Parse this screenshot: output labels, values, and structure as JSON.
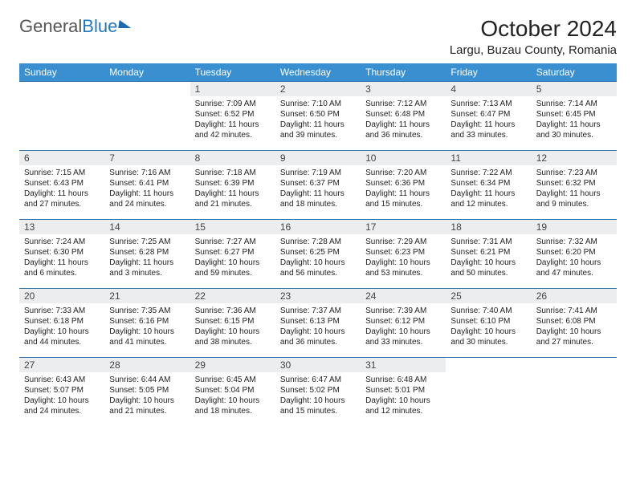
{
  "logo": {
    "text1": "General",
    "text2": "Blue"
  },
  "title": "October 2024",
  "location": "Largu, Buzau County, Romania",
  "colors": {
    "header_bg": "#3a8fd0",
    "header_text": "#ffffff",
    "row_divider": "#2d6fa8",
    "daynum_bg": "#ecedee",
    "logo_blue": "#2277c3"
  },
  "weekdays": [
    "Sunday",
    "Monday",
    "Tuesday",
    "Wednesday",
    "Thursday",
    "Friday",
    "Saturday"
  ],
  "weeks": [
    [
      {
        "empty": true
      },
      {
        "empty": true
      },
      {
        "n": "1",
        "sr": "Sunrise: 7:09 AM",
        "ss": "Sunset: 6:52 PM",
        "dl": "Daylight: 11 hours and 42 minutes."
      },
      {
        "n": "2",
        "sr": "Sunrise: 7:10 AM",
        "ss": "Sunset: 6:50 PM",
        "dl": "Daylight: 11 hours and 39 minutes."
      },
      {
        "n": "3",
        "sr": "Sunrise: 7:12 AM",
        "ss": "Sunset: 6:48 PM",
        "dl": "Daylight: 11 hours and 36 minutes."
      },
      {
        "n": "4",
        "sr": "Sunrise: 7:13 AM",
        "ss": "Sunset: 6:47 PM",
        "dl": "Daylight: 11 hours and 33 minutes."
      },
      {
        "n": "5",
        "sr": "Sunrise: 7:14 AM",
        "ss": "Sunset: 6:45 PM",
        "dl": "Daylight: 11 hours and 30 minutes."
      }
    ],
    [
      {
        "n": "6",
        "sr": "Sunrise: 7:15 AM",
        "ss": "Sunset: 6:43 PM",
        "dl": "Daylight: 11 hours and 27 minutes."
      },
      {
        "n": "7",
        "sr": "Sunrise: 7:16 AM",
        "ss": "Sunset: 6:41 PM",
        "dl": "Daylight: 11 hours and 24 minutes."
      },
      {
        "n": "8",
        "sr": "Sunrise: 7:18 AM",
        "ss": "Sunset: 6:39 PM",
        "dl": "Daylight: 11 hours and 21 minutes."
      },
      {
        "n": "9",
        "sr": "Sunrise: 7:19 AM",
        "ss": "Sunset: 6:37 PM",
        "dl": "Daylight: 11 hours and 18 minutes."
      },
      {
        "n": "10",
        "sr": "Sunrise: 7:20 AM",
        "ss": "Sunset: 6:36 PM",
        "dl": "Daylight: 11 hours and 15 minutes."
      },
      {
        "n": "11",
        "sr": "Sunrise: 7:22 AM",
        "ss": "Sunset: 6:34 PM",
        "dl": "Daylight: 11 hours and 12 minutes."
      },
      {
        "n": "12",
        "sr": "Sunrise: 7:23 AM",
        "ss": "Sunset: 6:32 PM",
        "dl": "Daylight: 11 hours and 9 minutes."
      }
    ],
    [
      {
        "n": "13",
        "sr": "Sunrise: 7:24 AM",
        "ss": "Sunset: 6:30 PM",
        "dl": "Daylight: 11 hours and 6 minutes."
      },
      {
        "n": "14",
        "sr": "Sunrise: 7:25 AM",
        "ss": "Sunset: 6:28 PM",
        "dl": "Daylight: 11 hours and 3 minutes."
      },
      {
        "n": "15",
        "sr": "Sunrise: 7:27 AM",
        "ss": "Sunset: 6:27 PM",
        "dl": "Daylight: 10 hours and 59 minutes."
      },
      {
        "n": "16",
        "sr": "Sunrise: 7:28 AM",
        "ss": "Sunset: 6:25 PM",
        "dl": "Daylight: 10 hours and 56 minutes."
      },
      {
        "n": "17",
        "sr": "Sunrise: 7:29 AM",
        "ss": "Sunset: 6:23 PM",
        "dl": "Daylight: 10 hours and 53 minutes."
      },
      {
        "n": "18",
        "sr": "Sunrise: 7:31 AM",
        "ss": "Sunset: 6:21 PM",
        "dl": "Daylight: 10 hours and 50 minutes."
      },
      {
        "n": "19",
        "sr": "Sunrise: 7:32 AM",
        "ss": "Sunset: 6:20 PM",
        "dl": "Daylight: 10 hours and 47 minutes."
      }
    ],
    [
      {
        "n": "20",
        "sr": "Sunrise: 7:33 AM",
        "ss": "Sunset: 6:18 PM",
        "dl": "Daylight: 10 hours and 44 minutes."
      },
      {
        "n": "21",
        "sr": "Sunrise: 7:35 AM",
        "ss": "Sunset: 6:16 PM",
        "dl": "Daylight: 10 hours and 41 minutes."
      },
      {
        "n": "22",
        "sr": "Sunrise: 7:36 AM",
        "ss": "Sunset: 6:15 PM",
        "dl": "Daylight: 10 hours and 38 minutes."
      },
      {
        "n": "23",
        "sr": "Sunrise: 7:37 AM",
        "ss": "Sunset: 6:13 PM",
        "dl": "Daylight: 10 hours and 36 minutes."
      },
      {
        "n": "24",
        "sr": "Sunrise: 7:39 AM",
        "ss": "Sunset: 6:12 PM",
        "dl": "Daylight: 10 hours and 33 minutes."
      },
      {
        "n": "25",
        "sr": "Sunrise: 7:40 AM",
        "ss": "Sunset: 6:10 PM",
        "dl": "Daylight: 10 hours and 30 minutes."
      },
      {
        "n": "26",
        "sr": "Sunrise: 7:41 AM",
        "ss": "Sunset: 6:08 PM",
        "dl": "Daylight: 10 hours and 27 minutes."
      }
    ],
    [
      {
        "n": "27",
        "sr": "Sunrise: 6:43 AM",
        "ss": "Sunset: 5:07 PM",
        "dl": "Daylight: 10 hours and 24 minutes."
      },
      {
        "n": "28",
        "sr": "Sunrise: 6:44 AM",
        "ss": "Sunset: 5:05 PM",
        "dl": "Daylight: 10 hours and 21 minutes."
      },
      {
        "n": "29",
        "sr": "Sunrise: 6:45 AM",
        "ss": "Sunset: 5:04 PM",
        "dl": "Daylight: 10 hours and 18 minutes."
      },
      {
        "n": "30",
        "sr": "Sunrise: 6:47 AM",
        "ss": "Sunset: 5:02 PM",
        "dl": "Daylight: 10 hours and 15 minutes."
      },
      {
        "n": "31",
        "sr": "Sunrise: 6:48 AM",
        "ss": "Sunset: 5:01 PM",
        "dl": "Daylight: 10 hours and 12 minutes."
      },
      {
        "empty": true
      },
      {
        "empty": true
      }
    ]
  ]
}
